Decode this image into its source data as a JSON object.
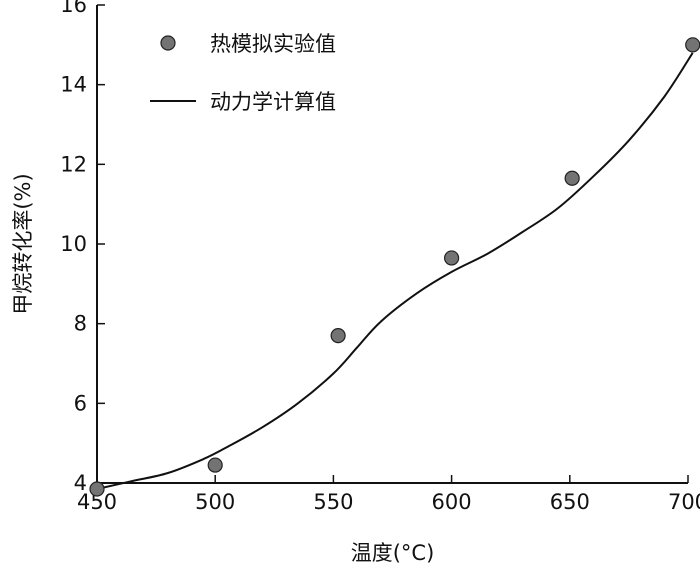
{
  "chart_data": {
    "type": "scatter",
    "xlabel": "温度(°C)",
    "ylabel": "甲烷转化率(%)",
    "xlim": [
      450,
      700
    ],
    "ylim": [
      4,
      16
    ],
    "x_ticks": [
      450,
      500,
      550,
      600,
      650,
      700
    ],
    "y_ticks": [
      4,
      6,
      8,
      10,
      12,
      14,
      16
    ],
    "grid": false,
    "legend": {
      "position": "top-left"
    },
    "series": [
      {
        "name": "热模拟实验值",
        "kind": "scatter",
        "color": "#737373",
        "x": [
          450,
          500,
          552,
          600,
          651,
          702
        ],
        "y": [
          3.85,
          4.45,
          7.7,
          9.65,
          11.65,
          15.0
        ]
      },
      {
        "name": "动力学计算值",
        "kind": "line",
        "color": "#111111",
        "x": [
          450,
          465,
          480,
          495,
          505,
          520,
          535,
          550,
          560,
          570,
          585,
          600,
          615,
          630,
          645,
          660,
          675,
          690,
          702
        ],
        "y": [
          3.85,
          4.05,
          4.25,
          4.6,
          4.9,
          5.4,
          6.0,
          6.75,
          7.4,
          8.05,
          8.75,
          9.3,
          9.75,
          10.3,
          10.9,
          11.7,
          12.6,
          13.7,
          14.8
        ]
      }
    ]
  }
}
